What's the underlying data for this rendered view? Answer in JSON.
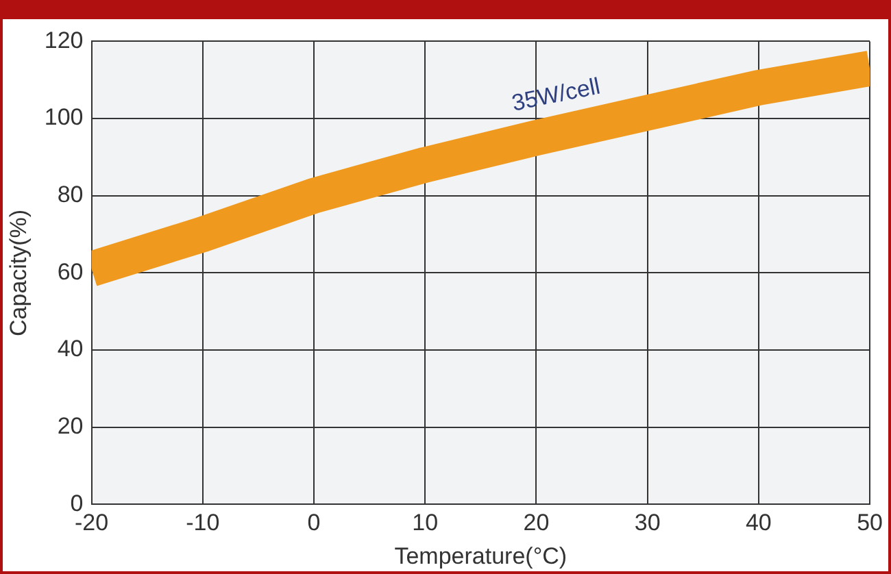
{
  "chart_data": {
    "type": "line",
    "xlabel": "Temperature(°C)",
    "ylabel": "Capacity(%)",
    "x": [
      -20,
      -10,
      0,
      10,
      20,
      30,
      40,
      50
    ],
    "series": [
      {
        "color": "#ef9a1e",
        "values": [
          61,
          70,
          80,
          88,
          95,
          101.5,
          108,
          113
        ]
      }
    ],
    "xlim": [
      -20,
      50
    ],
    "xticks": [
      -20,
      -10,
      0,
      10,
      20,
      30,
      40,
      50
    ],
    "ylim": [
      0,
      120
    ],
    "yticks": [
      0,
      20,
      40,
      60,
      80,
      100,
      120
    ],
    "grid": true,
    "legend": false,
    "marker": "none",
    "line_style": "solid",
    "annotations": [
      "35W/cell"
    ]
  }
}
